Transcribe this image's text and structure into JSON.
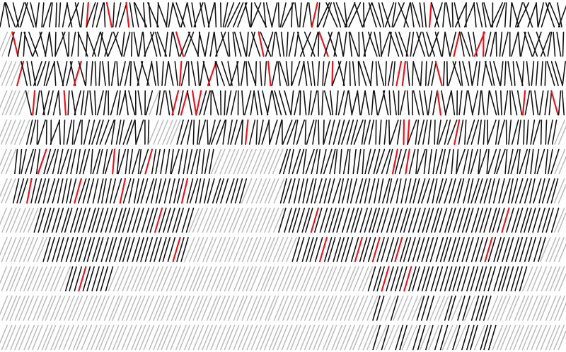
{
  "figure": {
    "description_type": "line-segment-texture",
    "rows": 12,
    "stroke_colors": {
      "active": "#111111",
      "inactive": "#bdbdbd",
      "highlight": "#e8121b"
    },
    "background": "#ffffff"
  }
}
